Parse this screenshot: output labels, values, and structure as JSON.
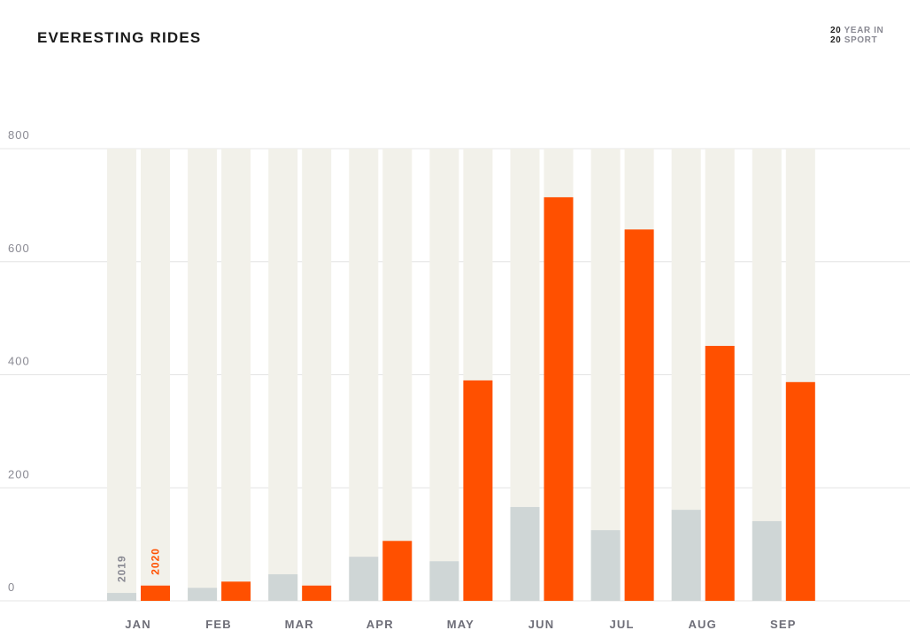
{
  "header": {
    "title": "EVERESTING RIDES"
  },
  "logo": {
    "line1_num": "20",
    "line1_text": "YEAR IN",
    "line2_num": "20",
    "line2_text": "SPORT"
  },
  "colors": {
    "s2019": "#cfd6d6",
    "s2020": "#ff5000",
    "track": "#f2f1ea",
    "grid": "#e4e4e4"
  },
  "chart_data": {
    "type": "bar",
    "title": "EVERESTING RIDES",
    "categories": [
      "JAN",
      "FEB",
      "MAR",
      "APR",
      "MAY",
      "JUN",
      "JUL",
      "AUG",
      "SEP"
    ],
    "series": [
      {
        "name": "2019",
        "values": [
          14,
          23,
          47,
          78,
          70,
          166,
          125,
          161,
          141
        ]
      },
      {
        "name": "2020",
        "values": [
          27,
          34,
          27,
          106,
          390,
          714,
          657,
          451,
          387
        ]
      }
    ],
    "yticks": [
      0,
      200,
      400,
      600,
      800
    ],
    "ylim": [
      0,
      800
    ],
    "grid": true,
    "xlabel": "",
    "ylabel": ""
  }
}
